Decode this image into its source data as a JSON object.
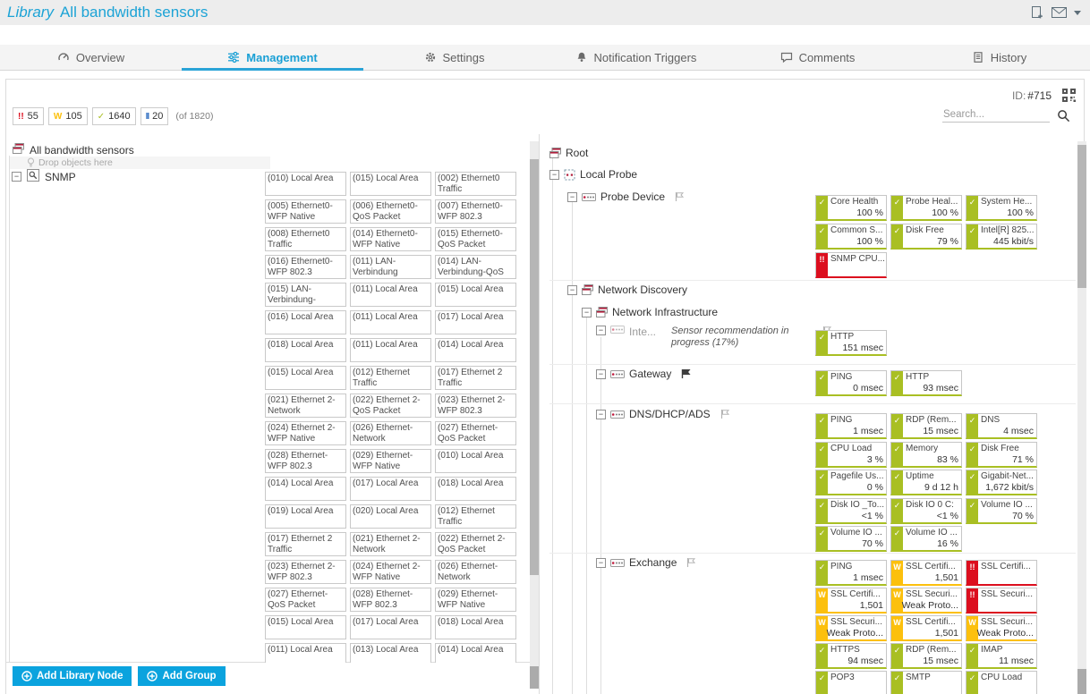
{
  "header": {
    "title_prefix": "Library",
    "title": "All bandwidth sensors"
  },
  "tabs": [
    {
      "label": "Overview",
      "active": false
    },
    {
      "label": "Management",
      "active": true
    },
    {
      "label": "Settings",
      "active": false
    },
    {
      "label": "Notification Triggers",
      "active": false
    },
    {
      "label": "Comments",
      "active": false
    },
    {
      "label": "History",
      "active": false
    }
  ],
  "toolbar": {
    "id_label": "ID:",
    "id_value": "#715",
    "search_placeholder": "Search..."
  },
  "statuses": {
    "ok": {
      "glyph": "✓",
      "color": "#a9bf23"
    },
    "warning": {
      "glyph": "W",
      "color": "#fcc00d"
    },
    "error": {
      "glyph": "!!",
      "color": "#dc0e1e"
    },
    "paused": {
      "glyph": "II",
      "color": "#3a75c4"
    }
  },
  "status_badges": [
    {
      "status": "error",
      "count": "55"
    },
    {
      "status": "warning",
      "count": "105"
    },
    {
      "status": "ok",
      "count": "1640"
    },
    {
      "status": "paused",
      "count": "20"
    }
  ],
  "status_total": "(of 1820)",
  "library_tree": {
    "root_label": "All bandwidth sensors",
    "drop_hint": "Drop objects here",
    "group_label": "SNMP"
  },
  "library_grid": {
    "tiles": [
      "(010) Local Area",
      "(015) Local Area",
      "(002) Ethernet0 Traffic",
      "(005) Ethernet0-WFP Native",
      "(006) Ethernet0-QoS Packet",
      "(007) Ethernet0-WFP 802.3",
      "(008) Ethernet0 Traffic",
      "(014) Ethernet0-WFP Native",
      "(015) Ethernet0-QoS Packet",
      "(016) Ethernet0-WFP 802.3",
      "(011) LAN-Verbindung",
      "(014) LAN-Verbindung-QoS",
      "(015) LAN-Verbindung-",
      "(011) Local Area",
      "(015) Local Area",
      "(016) Local Area",
      "(011) Local Area",
      "(017) Local Area",
      "(018) Local Area",
      "(011) Local Area",
      "(014) Local Area",
      "(015) Local Area",
      "(012) Ethernet Traffic",
      "(017) Ethernet 2 Traffic",
      "(021) Ethernet 2-Network",
      "(022) Ethernet 2-QoS Packet",
      "(023) Ethernet 2-WFP 802.3",
      "(024) Ethernet 2-WFP Native",
      "(026) Ethernet-Network",
      "(027) Ethernet-QoS Packet",
      "(028) Ethernet-WFP 802.3",
      "(029) Ethernet-WFP Native",
      "(010) Local Area",
      "(014) Local Area",
      "(017) Local Area",
      "(018) Local Area",
      "(019) Local Area",
      "(020) Local Area",
      "(012) Ethernet Traffic",
      "(017) Ethernet 2 Traffic",
      "(021) Ethernet 2-Network",
      "(022) Ethernet 2-QoS Packet",
      "(023) Ethernet 2-WFP 802.3",
      "(024) Ethernet 2-WFP Native",
      "(026) Ethernet-Network",
      "(027) Ethernet-QoS Packet",
      "(028) Ethernet-WFP 802.3",
      "(029) Ethernet-WFP Native",
      "(015) Local Area",
      "(017) Local Area",
      "(018) Local Area",
      "(011) Local Area",
      "(013) Local Area",
      "(014) Local Area"
    ]
  },
  "device_tree": {
    "nodes": [
      {
        "label": "Root",
        "icon": "group-icon"
      },
      {
        "label": "Local Probe",
        "icon": "probe-icon"
      },
      {
        "label": "Probe Device",
        "icon": "device-icon",
        "flag": "outline",
        "sensors": [
          {
            "status": "ok",
            "name": "Core Health",
            "value": "100 %"
          },
          {
            "status": "ok",
            "name": "Probe Heal...",
            "value": "100 %"
          },
          {
            "status": "ok",
            "name": "System He...",
            "value": "100 %"
          },
          {
            "status": "ok",
            "name": "Common S...",
            "value": "100 %"
          },
          {
            "status": "ok",
            "name": "Disk Free",
            "value": "79 %"
          },
          {
            "status": "ok",
            "name": "Intel[R] 825...",
            "value": "445 kbit/s"
          },
          {
            "status": "error",
            "name": "SNMP CPU...",
            "value": ""
          }
        ]
      },
      {
        "label": "Network Discovery",
        "icon": "group-icon"
      },
      {
        "label": "Network Infrastructure",
        "icon": "group-icon"
      },
      {
        "label": "Inte...",
        "icon": "device-icon",
        "note": "Sensor recommendation in progress (17%)",
        "note_flag": "outline",
        "sensors": [
          {
            "status": "ok",
            "name": "HTTP",
            "value": "151 msec"
          }
        ]
      },
      {
        "label": "Gateway",
        "icon": "device-icon",
        "flag": "filled",
        "sensors": [
          {
            "status": "ok",
            "name": "PING",
            "value": "0 msec"
          },
          {
            "status": "ok",
            "name": "HTTP",
            "value": "93 msec"
          }
        ]
      },
      {
        "label": "DNS/DHCP/ADS",
        "icon": "device-icon",
        "flag": "outline",
        "sensors": [
          {
            "status": "ok",
            "name": "PING",
            "value": "1 msec"
          },
          {
            "status": "ok",
            "name": "RDP (Rem...",
            "value": "15 msec"
          },
          {
            "status": "ok",
            "name": "DNS",
            "value": "4 msec"
          },
          {
            "status": "ok",
            "name": "CPU Load",
            "value": "3 %"
          },
          {
            "status": "ok",
            "name": "Memory",
            "value": "83 %"
          },
          {
            "status": "ok",
            "name": "Disk Free",
            "value": "71 %"
          },
          {
            "status": "ok",
            "name": "Pagefile Us...",
            "value": "0 %"
          },
          {
            "status": "ok",
            "name": "Uptime",
            "value": "9 d 12 h"
          },
          {
            "status": "ok",
            "name": "Gigabit-Net...",
            "value": "1,672 kbit/s"
          },
          {
            "status": "ok",
            "name": "Disk IO _To...",
            "value": "<1 %"
          },
          {
            "status": "ok",
            "name": "Disk IO 0 C:",
            "value": "<1 %"
          },
          {
            "status": "ok",
            "name": "Volume IO ...",
            "value": "70 %"
          },
          {
            "status": "ok",
            "name": "Volume IO ...",
            "value": "70 %"
          },
          {
            "status": "ok",
            "name": "Volume IO ...",
            "value": "16 %"
          }
        ]
      },
      {
        "label": "Exchange",
        "icon": "device-icon",
        "flag": "outline",
        "sensors": [
          {
            "status": "ok",
            "name": "PING",
            "value": "1 msec"
          },
          {
            "status": "warning",
            "name": "SSL Certifi...",
            "value": "1,501"
          },
          {
            "status": "error",
            "name": "SSL Certifi...",
            "value": ""
          },
          {
            "status": "warning",
            "name": "SSL Certifi...",
            "value": "1,501"
          },
          {
            "status": "warning",
            "name": "SSL Securi...",
            "value": "Weak Proto..."
          },
          {
            "status": "error",
            "name": "SSL Securi...",
            "value": ""
          },
          {
            "status": "warning",
            "name": "SSL Securi...",
            "value": "Weak Proto..."
          },
          {
            "status": "warning",
            "name": "SSL Certifi...",
            "value": "1,501"
          },
          {
            "status": "warning",
            "name": "SSL Securi...",
            "value": "Weak Proto..."
          },
          {
            "status": "ok",
            "name": "HTTPS",
            "value": "94 msec"
          },
          {
            "status": "ok",
            "name": "RDP (Rem...",
            "value": "15 msec"
          },
          {
            "status": "ok",
            "name": "IMAP",
            "value": "11 msec"
          },
          {
            "status": "ok",
            "name": "POP3",
            "value": ""
          },
          {
            "status": "ok",
            "name": "SMTP",
            "value": ""
          },
          {
            "status": "ok",
            "name": "CPU Load",
            "value": ""
          }
        ]
      }
    ]
  },
  "footer": {
    "buttons": [
      {
        "label": "Add Library Node"
      },
      {
        "label": "Add Group"
      }
    ]
  }
}
